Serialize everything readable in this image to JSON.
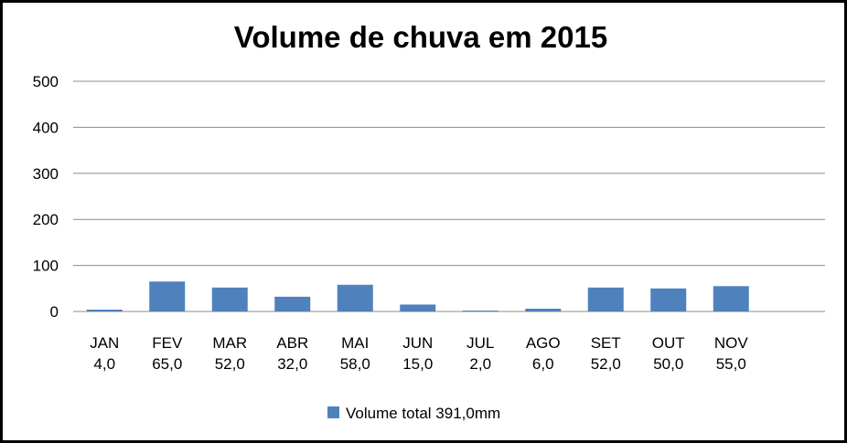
{
  "chart_data": {
    "type": "bar",
    "title": "Volume de chuva em 2015",
    "categories": [
      "JAN",
      "FEV",
      "MAR",
      "ABR",
      "MAI",
      "JUN",
      "JUL",
      "AGO",
      "SET",
      "OUT",
      "NOV"
    ],
    "value_labels": [
      "4,0",
      "65,0",
      "52,0",
      "32,0",
      "58,0",
      "15,0",
      "2,0",
      "6,0",
      "52,0",
      "50,0",
      "55,0"
    ],
    "series": [
      {
        "name": "Volume total 391,0mm",
        "values": [
          4,
          65,
          52,
          32,
          58,
          15,
          2,
          6,
          52,
          50,
          55
        ],
        "color": "#4F81BD"
      }
    ],
    "yticks": [
      "0",
      "100",
      "200",
      "300",
      "400",
      "500"
    ],
    "ylim": [
      0,
      500
    ],
    "grid": true,
    "legend_position": "bottom"
  }
}
